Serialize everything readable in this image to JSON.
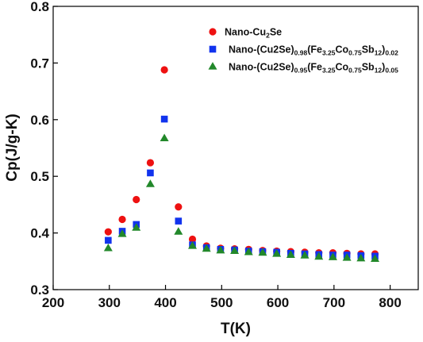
{
  "chart_data": {
    "type": "scatter",
    "xlabel": "T(K)",
    "ylabel": "Cp(J/g-K)",
    "xlim": [
      200,
      850
    ],
    "ylim": [
      0.3,
      0.8
    ],
    "xticks": [
      200,
      300,
      400,
      500,
      600,
      700,
      800
    ],
    "yticks": [
      0.3,
      0.4,
      0.5,
      0.6,
      0.7,
      0.8
    ],
    "xtick_labels": [
      "200",
      "300",
      "400",
      "500",
      "600",
      "700",
      "800"
    ],
    "ytick_labels": [
      "0.3",
      "0.4",
      "0.5",
      "0.6",
      "0.7",
      "0.8"
    ],
    "grid": false,
    "legend_position": "top-right",
    "series": [
      {
        "name_parts": [
          {
            "t": "Nano-Cu"
          },
          {
            "t": "2",
            "sub": true
          },
          {
            "t": "Se"
          }
        ],
        "marker": "circle",
        "color": "#ee1111",
        "x": [
          298,
          323,
          348,
          373,
          398,
          423,
          448,
          473,
          498,
          523,
          548,
          573,
          598,
          623,
          648,
          673,
          698,
          723,
          748,
          773
        ],
        "y": [
          0.402,
          0.424,
          0.459,
          0.524,
          0.688,
          0.446,
          0.389,
          0.377,
          0.373,
          0.372,
          0.371,
          0.369,
          0.368,
          0.367,
          0.366,
          0.365,
          0.365,
          0.364,
          0.363,
          0.363
        ]
      },
      {
        "name_parts": [
          {
            "t": "Nano-(Cu2Se)"
          },
          {
            "t": "0.98",
            "sub": true
          },
          {
            "t": "(Fe"
          },
          {
            "t": "3.25",
            "sub": true
          },
          {
            "t": "Co"
          },
          {
            "t": "0.75",
            "sub": true
          },
          {
            "t": "Sb"
          },
          {
            "t": "12",
            "sub": true
          },
          {
            "t": ")"
          },
          {
            "t": "0.02",
            "sub": true
          }
        ],
        "marker": "square",
        "color": "#1133ee",
        "x": [
          298,
          323,
          348,
          373,
          398,
          423,
          448,
          473,
          498,
          523,
          548,
          573,
          598,
          623,
          648,
          673,
          698,
          723,
          748,
          773
        ],
        "y": [
          0.387,
          0.403,
          0.415,
          0.506,
          0.601,
          0.421,
          0.379,
          0.374,
          0.371,
          0.37,
          0.368,
          0.367,
          0.366,
          0.364,
          0.363,
          0.362,
          0.361,
          0.361,
          0.36,
          0.359
        ]
      },
      {
        "name_parts": [
          {
            "t": "Nano-(Cu2Se)"
          },
          {
            "t": "0.95",
            "sub": true
          },
          {
            "t": "(Fe"
          },
          {
            "t": "3.25",
            "sub": true
          },
          {
            "t": "Co"
          },
          {
            "t": "0.75",
            "sub": true
          },
          {
            "t": "Sb"
          },
          {
            "t": "12",
            "sub": true
          },
          {
            "t": ")"
          },
          {
            "t": "0.05",
            "sub": true
          }
        ],
        "marker": "triangle",
        "color": "#22882a",
        "x": [
          298,
          323,
          348,
          373,
          398,
          423,
          448,
          473,
          498,
          523,
          548,
          573,
          598,
          623,
          648,
          673,
          698,
          723,
          748,
          773
        ],
        "y": [
          0.373,
          0.398,
          0.409,
          0.486,
          0.567,
          0.402,
          0.377,
          0.372,
          0.369,
          0.368,
          0.366,
          0.365,
          0.363,
          0.361,
          0.36,
          0.358,
          0.357,
          0.356,
          0.355,
          0.354
        ]
      }
    ]
  }
}
